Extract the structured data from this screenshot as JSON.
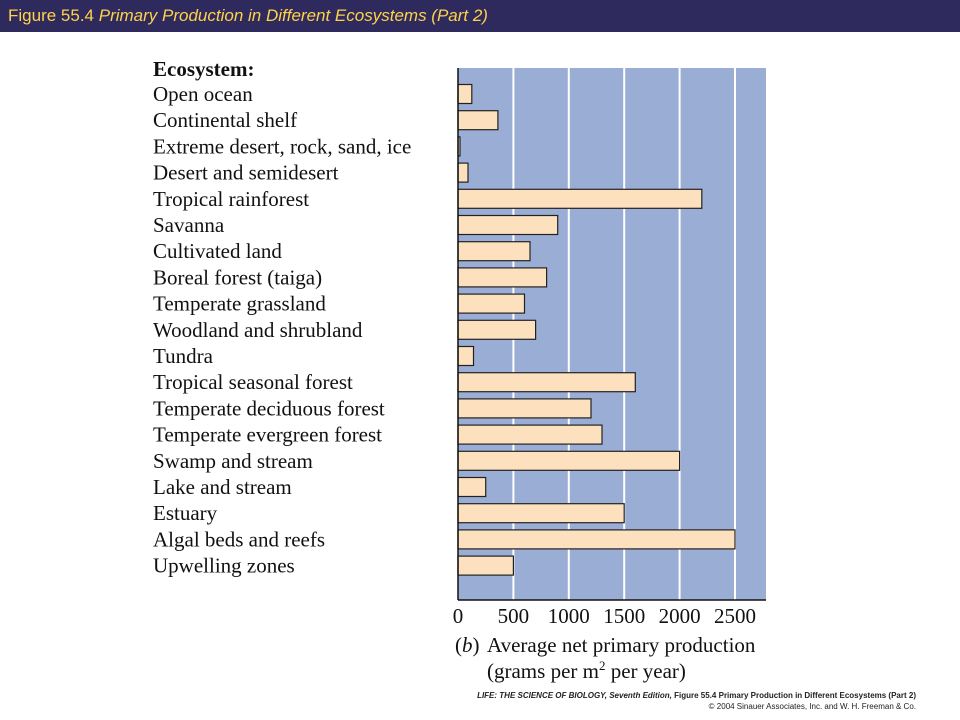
{
  "header": {
    "figure_number": "Figure 55.4",
    "figure_title": "Primary Production in Different Ecosystems (Part 2)"
  },
  "colors": {
    "header_bg": "#2e2a5e",
    "header_text": "#ffd24a",
    "plot_bg": "#9aadd4",
    "bar_fill": "#fde0bd",
    "bar_stroke": "#222222",
    "grid": "#ffffff"
  },
  "chart_data": {
    "type": "bar",
    "orientation": "horizontal",
    "category_header": "Ecosystem:",
    "categories": [
      "Open ocean",
      "Continental shelf",
      "Extreme desert, rock, sand, ice",
      "Desert and semidesert",
      "Tropical rainforest",
      "Savanna",
      "Cultivated land",
      "Boreal forest (taiga)",
      "Temperate grassland",
      "Woodland and shrubland",
      "Tundra",
      "Tropical seasonal forest",
      "Temperate deciduous forest",
      "Temperate evergreen forest",
      "Swamp and stream",
      "Lake and stream",
      "Estuary",
      "Algal beds and reefs",
      "Upwelling zones"
    ],
    "values": [
      125,
      360,
      3,
      90,
      2200,
      900,
      650,
      800,
      600,
      700,
      140,
      1600,
      1200,
      1300,
      2000,
      250,
      1500,
      2500,
      500
    ],
    "xlim": [
      0,
      2800
    ],
    "xticks": [
      "0",
      "500",
      "1000",
      "1500",
      "2000",
      "2500"
    ],
    "xtick_values": [
      0,
      500,
      1000,
      1500,
      2000,
      2500
    ],
    "panel_label": "(b)",
    "xlabel_line1": "Average net primary production",
    "xlabel_line2_prefix": "(grams per m",
    "xlabel_line2_sup": "2",
    "xlabel_line2_suffix": " per year)",
    "grid": "vertical"
  },
  "footer": {
    "source_book": "LIFE: THE SCIENCE OF BIOLOGY, Seventh Edition,",
    "source_figure": "Figure 55.4 Primary Production in Different Ecosystems (Part 2)",
    "copyright": "© 2004 Sinauer Associates, Inc. and W. H. Freeman & Co."
  }
}
